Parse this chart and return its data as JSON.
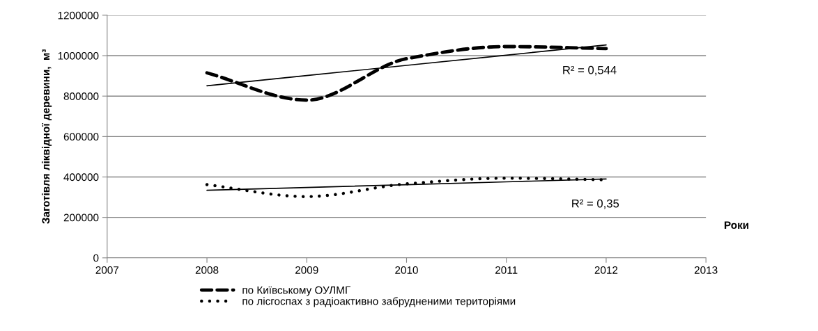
{
  "chart_data": {
    "type": "line",
    "xlabel": "Роки",
    "ylabel": "Заготівля ліквідної деревини,  м³",
    "x": [
      2008,
      2009,
      2010,
      2011,
      2012
    ],
    "series": [
      {
        "name": "по Київському ОУЛМГ",
        "color": "#000000",
        "line_style": "dashed",
        "values": [
          915000,
          780000,
          985000,
          1045000,
          1035000
        ]
      },
      {
        "name": "по лісгоспах з радіоактивно забрудненими територіями",
        "color": "#000000",
        "line_style": "dotted",
        "values": [
          362000,
          303000,
          366000,
          394000,
          386000
        ]
      },
      {
        "type": "line",
        "color": "#000000",
        "line_style": "solid",
        "values": [
          851000,
          901500,
          952000,
          1002500,
          1053000
        ]
      },
      {
        "type": "line",
        "color": "#000000",
        "line_style": "solid",
        "values": [
          334000,
          348000,
          362000,
          376000,
          390000
        ]
      }
    ],
    "annotations": [
      "R² = 0,544",
      "R² = 0,35"
    ],
    "xlim": [
      2007,
      2013
    ],
    "xticks": [
      2007,
      2008,
      2009,
      2010,
      2011,
      2012,
      2013
    ],
    "ylim": [
      0,
      1200000
    ],
    "yticks": [
      0,
      200000,
      400000,
      600000,
      800000,
      1000000,
      1200000
    ],
    "grid": "y",
    "legend": "bottom",
    "marker": "none"
  }
}
